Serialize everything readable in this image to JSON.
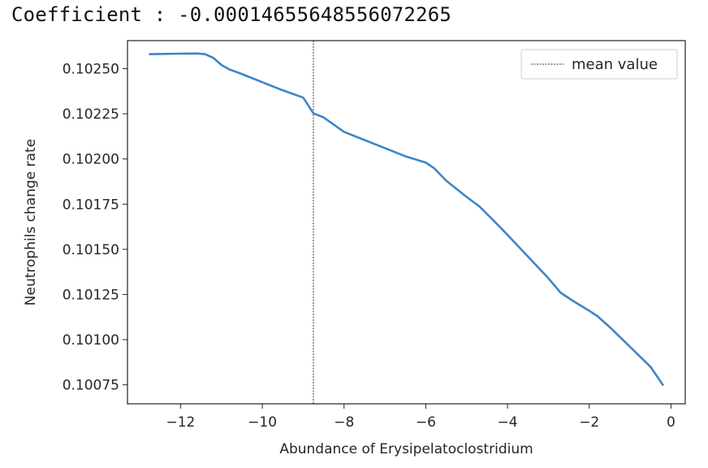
{
  "header": {
    "coefficient_text": "Coefficient : -0.00014655648556072265"
  },
  "colors": {
    "line": "#3d85c6",
    "mean_line": "#333333",
    "axis": "#222222"
  },
  "chart_data": {
    "type": "line",
    "title": "",
    "xlabel": "Abundance of Erysipelatoclostridium",
    "ylabel": "Neutrophils change rate",
    "xlim": [
      -13.3,
      0.35
    ],
    "ylim": [
      0.100645,
      0.102655
    ],
    "x_ticks": [
      -12,
      -10,
      -8,
      -6,
      -4,
      -2,
      0
    ],
    "x_tick_labels": [
      "−12",
      "−10",
      "−8",
      "−6",
      "−4",
      "−2",
      "0"
    ],
    "y_ticks": [
      0.1025,
      0.10225,
      0.102,
      0.10175,
      0.1015,
      0.10125,
      0.101,
      0.10075
    ],
    "y_tick_labels": [
      "0.10250",
      "0.10225",
      "0.10200",
      "0.10175",
      "0.10150",
      "0.10125",
      "0.10100",
      "0.10075"
    ],
    "grid": false,
    "legend": {
      "placement": "top-right",
      "entries": [
        {
          "label": "mean value",
          "style": "dotted"
        }
      ]
    },
    "mean_value_x": -8.75,
    "series": [
      {
        "x": [
          -12.75,
          -12.0,
          -11.6,
          -11.4,
          -11.2,
          -11.0,
          -10.8,
          -10.5,
          -10.0,
          -9.5,
          -9.0,
          -8.75,
          -8.5,
          -8.0,
          -7.5,
          -7.0,
          -6.5,
          -6.0,
          -5.8,
          -5.5,
          -5.0,
          -4.7,
          -4.3,
          -4.0,
          -3.5,
          -3.0,
          -2.7,
          -2.4,
          -2.0,
          -1.8,
          -1.5,
          -1.0,
          -0.5,
          -0.2
        ],
        "y": [
          0.10258,
          0.102583,
          0.102584,
          0.10258,
          0.10256,
          0.10252,
          0.102495,
          0.10247,
          0.102425,
          0.10238,
          0.10234,
          0.102253,
          0.10223,
          0.10215,
          0.102105,
          0.10206,
          0.102015,
          0.10198,
          0.10195,
          0.10188,
          0.10179,
          0.10174,
          0.10165,
          0.10158,
          0.10146,
          0.10134,
          0.10126,
          0.101215,
          0.10116,
          0.10113,
          0.10107,
          0.10096,
          0.10085,
          0.10075
        ]
      }
    ]
  }
}
